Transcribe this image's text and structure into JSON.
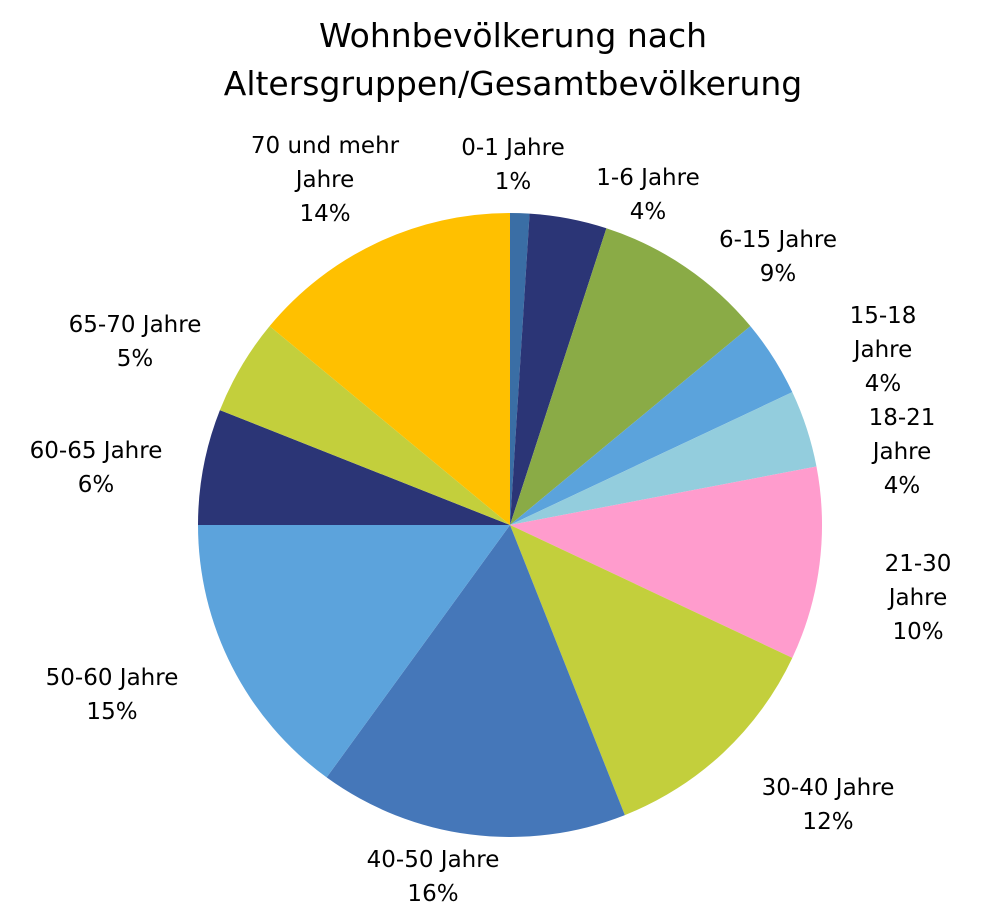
{
  "chart_data": {
    "type": "pie",
    "title": "Wohnbevölkerung nach Altersgruppen/Gesamtbevölkerung",
    "categories": [
      "0-1 Jahre",
      "1-6 Jahre",
      "6-15 Jahre",
      "15-18 Jahre",
      "18-21 Jahre",
      "21-30 Jahre",
      "30-40 Jahre",
      "40-50 Jahre",
      "50-60 Jahre",
      "60-65 Jahre",
      "65-70 Jahre",
      "70 und mehr Jahre"
    ],
    "values": [
      1,
      4,
      9,
      4,
      4,
      10,
      12,
      16,
      15,
      6,
      5,
      14
    ],
    "value_labels": [
      "1%",
      "4%",
      "9%",
      "4%",
      "4%",
      "10%",
      "12%",
      "16%",
      "15%",
      "6%",
      "5%",
      "14%"
    ],
    "colors": [
      "#3a6ea5",
      "#2b3576",
      "#8aab46",
      "#5ba3dc",
      "#93cddd",
      "#ff9ccd",
      "#c3cf3c",
      "#4577b9",
      "#5ca3dc",
      "#2b3576",
      "#c3cf3c",
      "#ffc000"
    ]
  }
}
